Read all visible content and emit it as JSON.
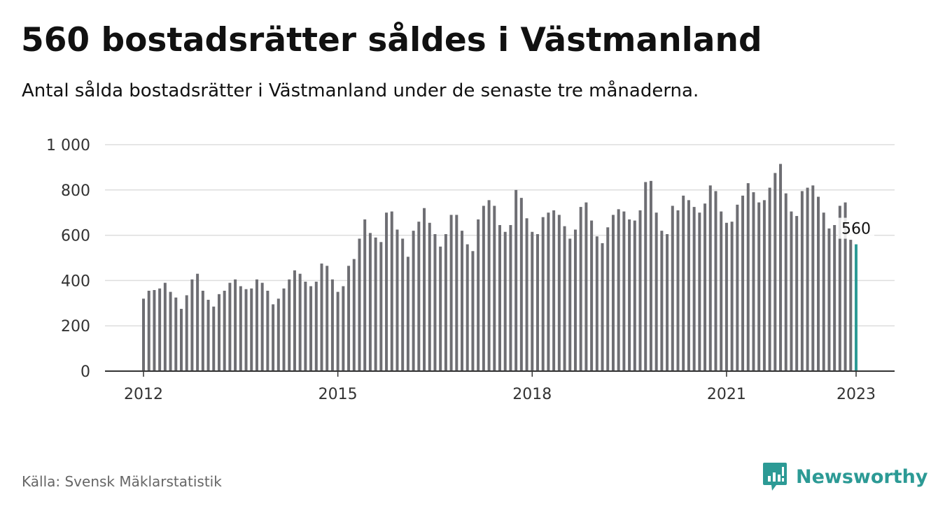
{
  "header": {
    "title": "560 bostadsrätter såldes i Västmanland",
    "subtitle": "Antal sålda bostadsrätter i Västmanland under de senaste tre månaderna."
  },
  "footer": {
    "source": "Källa: Svensk Mäklarstatistik",
    "brand_name": "Newsworthy",
    "brand_icon": "bar-chart-speech-bubble-icon"
  },
  "colors": {
    "bar": "#6e6e73",
    "highlight": "#2c9a95",
    "grid": "#dddddd",
    "axis": "#333333",
    "brand": "#2c9a95"
  },
  "chart_data": {
    "type": "bar",
    "title": "560 bostadsrätter såldes i Västmanland",
    "subtitle": "Antal sålda bostadsrätter i Västmanland under de senaste tre månaderna.",
    "xlabel": "",
    "ylabel": "",
    "x_start": "2012-01",
    "x_end": "2023-01",
    "x_ticks": [
      "2012",
      "2015",
      "2018",
      "2021",
      "2023"
    ],
    "y_ticks": [
      "0",
      "200",
      "400",
      "600",
      "800",
      "1 000"
    ],
    "ylim": [
      0,
      1000
    ],
    "grid": true,
    "highlight_label": "560",
    "series": [
      {
        "values": [
          320,
          355,
          358,
          365,
          390,
          350,
          325,
          275,
          335,
          405,
          430,
          355,
          315,
          285,
          340,
          355,
          390,
          405,
          375,
          362,
          365,
          405,
          390,
          355,
          295,
          320,
          365,
          405,
          445,
          430,
          395,
          375,
          395,
          475,
          465,
          405,
          350,
          375,
          465,
          495,
          585,
          670,
          610,
          590,
          570,
          700,
          705,
          625,
          585,
          505,
          620,
          660,
          720,
          655,
          605,
          550,
          605,
          690,
          690,
          620,
          560,
          530,
          670,
          730,
          755,
          730,
          645,
          615,
          645,
          800,
          765,
          675,
          615,
          605,
          680,
          700,
          710,
          690,
          640,
          585,
          625,
          725,
          745,
          665,
          595,
          565,
          635,
          690,
          715,
          705,
          670,
          665,
          710,
          835,
          840,
          700,
          620,
          605,
          730,
          710,
          775,
          755,
          725,
          700,
          740,
          820,
          795,
          705,
          655,
          660,
          735,
          775,
          830,
          790,
          745,
          755,
          810,
          875,
          915,
          785,
          705,
          685,
          795,
          810,
          820,
          770,
          700,
          630,
          645,
          730,
          745,
          580,
          560
        ]
      }
    ]
  }
}
